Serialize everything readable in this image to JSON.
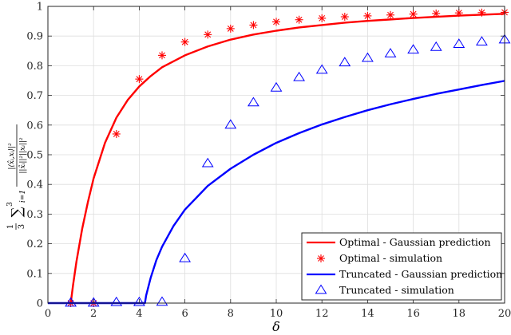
{
  "chart_data": {
    "type": "line",
    "xlabel": "δ",
    "ylabel": "1/3 ∑_{i=1}^{3} |⟨x̂_i, x_i⟩|² / (||x̂_i||² ||x_i||²)",
    "ylabel_parts": {
      "frac_num": "1",
      "frac_den": "3",
      "sum": "∑",
      "sum_top": "3",
      "sum_bottom": "i=1",
      "ratio_num": "|⟨x̂ᵢ,xᵢ⟩|²",
      "ratio_den": "||x̂ᵢ||²||xᵢ||²"
    },
    "xlim": [
      0,
      20
    ],
    "ylim": [
      0,
      1
    ],
    "xticks": [
      0,
      2,
      4,
      6,
      8,
      10,
      12,
      14,
      16,
      18,
      20
    ],
    "xtick_labels": [
      "0",
      "2",
      "4",
      "6",
      "8",
      "10",
      "12",
      "14",
      "16",
      "18",
      "20"
    ],
    "yticks": [
      0,
      0.1,
      0.2,
      0.3,
      0.4,
      0.5,
      0.6,
      0.7,
      0.8,
      0.9,
      1
    ],
    "ytick_labels": [
      "0",
      "0.1",
      "0.2",
      "0.3",
      "0.4",
      "0.5",
      "0.6",
      "0.7",
      "0.8",
      "0.9",
      "1"
    ],
    "grid": true,
    "legend_position": "bottom-right",
    "series": [
      {
        "name": "Optimal - Gaussian prediction",
        "kind": "line",
        "color": "#ff0000",
        "x": [
          1.0,
          1.1,
          1.25,
          1.5,
          1.75,
          2,
          2.5,
          3,
          3.5,
          4,
          4.5,
          5,
          6,
          7,
          8,
          9,
          10,
          11,
          12,
          13,
          14,
          15,
          16,
          17,
          18,
          19,
          20
        ],
        "y": [
          0,
          0.06,
          0.14,
          0.25,
          0.34,
          0.42,
          0.54,
          0.625,
          0.685,
          0.73,
          0.765,
          0.795,
          0.835,
          0.865,
          0.888,
          0.905,
          0.918,
          0.929,
          0.937,
          0.945,
          0.951,
          0.956,
          0.961,
          0.965,
          0.969,
          0.972,
          0.975
        ]
      },
      {
        "name": "Optimal - simulation",
        "kind": "marker",
        "marker": "asterisk",
        "color": "#ff0000",
        "x": [
          1,
          2,
          3,
          4,
          5,
          6,
          7,
          8,
          9,
          10,
          11,
          12,
          13,
          14,
          15,
          16,
          17,
          18,
          19,
          20
        ],
        "y": [
          0.0,
          0.0,
          0.57,
          0.755,
          0.835,
          0.88,
          0.905,
          0.925,
          0.937,
          0.948,
          0.955,
          0.96,
          0.965,
          0.968,
          0.971,
          0.974,
          0.976,
          0.978,
          0.979,
          0.98
        ]
      },
      {
        "name": "Truncated - Gaussian prediction",
        "kind": "line",
        "color": "#0000ff",
        "x": [
          0,
          4.25,
          4.3,
          4.5,
          4.75,
          5,
          5.5,
          6,
          7,
          8,
          9,
          10,
          11,
          12,
          13,
          14,
          15,
          16,
          17,
          18,
          19,
          20
        ],
        "y": [
          0,
          0,
          0.025,
          0.085,
          0.145,
          0.19,
          0.26,
          0.315,
          0.395,
          0.453,
          0.5,
          0.54,
          0.573,
          0.602,
          0.627,
          0.65,
          0.67,
          0.688,
          0.705,
          0.72,
          0.735,
          0.749
        ]
      },
      {
        "name": "Truncated - simulation",
        "kind": "marker",
        "marker": "triangle",
        "color": "#0000ff",
        "x": [
          1,
          2,
          3,
          4,
          5,
          6,
          7,
          8,
          9,
          10,
          11,
          12,
          13,
          14,
          15,
          16,
          17,
          18,
          19,
          20
        ],
        "y": [
          0.0,
          0.0,
          0.002,
          0.002,
          0.003,
          0.15,
          0.47,
          0.6,
          0.675,
          0.725,
          0.76,
          0.785,
          0.81,
          0.825,
          0.84,
          0.853,
          0.862,
          0.872,
          0.88,
          0.887
        ]
      }
    ]
  }
}
